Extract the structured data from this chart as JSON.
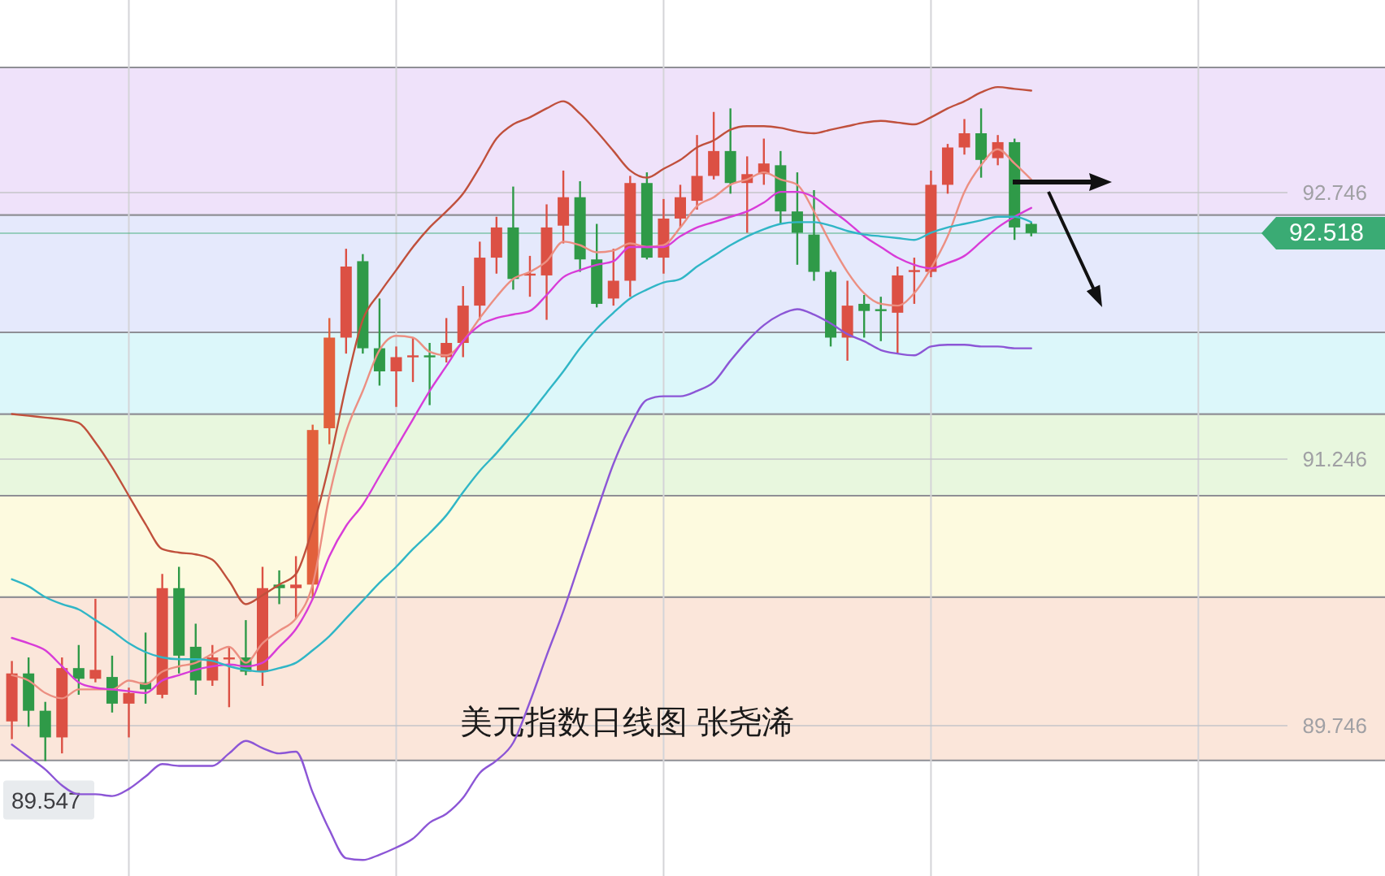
{
  "chart_data": {
    "type": "candlestick",
    "title": "美元指数日线图 张尧浠",
    "categories": [
      null,
      null,
      null,
      null,
      null,
      null,
      null,
      null,
      null,
      null,
      null,
      null,
      null,
      null,
      null,
      null,
      null,
      null,
      null,
      null,
      null,
      null,
      null,
      null,
      null,
      null,
      null,
      null,
      null,
      null,
      null,
      null,
      null,
      null,
      null,
      null,
      null,
      null,
      null,
      null,
      null,
      null,
      null,
      null,
      null,
      null,
      null,
      null,
      null,
      null,
      null,
      null,
      null,
      null,
      null,
      null,
      null,
      null,
      null,
      null,
      null,
      null
    ],
    "ohlc": [
      [
        89.77,
        90.11,
        89.67,
        90.04
      ],
      [
        90.04,
        90.13,
        89.74,
        89.83
      ],
      [
        89.83,
        89.88,
        89.547,
        89.68
      ],
      [
        89.68,
        90.13,
        89.59,
        90.07
      ],
      [
        90.07,
        90.2,
        89.92,
        90.01
      ],
      [
        90.01,
        90.46,
        89.99,
        90.06
      ],
      [
        90.02,
        90.14,
        89.82,
        89.87
      ],
      [
        89.87,
        89.96,
        89.68,
        89.93
      ],
      [
        89.99,
        90.27,
        89.87,
        89.95
      ],
      [
        89.92,
        90.6,
        89.9,
        90.52
      ],
      [
        90.52,
        90.64,
        90.04,
        90.14
      ],
      [
        90.19,
        90.32,
        89.92,
        90.0
      ],
      [
        90.0,
        90.2,
        89.97,
        90.13
      ],
      [
        90.12,
        90.19,
        89.85,
        90.13
      ],
      [
        90.13,
        90.34,
        90.03,
        90.05
      ],
      [
        90.05,
        90.64,
        89.97,
        90.52
      ],
      [
        90.54,
        90.62,
        90.43,
        90.52
      ],
      [
        90.52,
        90.7,
        90.35,
        90.54
      ],
      [
        90.54,
        91.44,
        90.46,
        91.41
      ],
      [
        91.42,
        92.04,
        91.33,
        91.93
      ],
      [
        91.93,
        92.43,
        91.84,
        92.33
      ],
      [
        92.36,
        92.4,
        91.84,
        91.87
      ],
      [
        91.87,
        92.15,
        91.66,
        91.74
      ],
      [
        91.74,
        91.88,
        91.54,
        91.82
      ],
      [
        91.82,
        91.93,
        91.68,
        91.83
      ],
      [
        91.83,
        91.9,
        91.55,
        91.82
      ],
      [
        91.82,
        92.04,
        91.79,
        91.9
      ],
      [
        91.9,
        92.22,
        91.82,
        92.11
      ],
      [
        92.11,
        92.47,
        92.03,
        92.38
      ],
      [
        92.38,
        92.61,
        92.29,
        92.55
      ],
      [
        92.55,
        92.78,
        92.2,
        92.26
      ],
      [
        92.28,
        92.39,
        92.16,
        92.29
      ],
      [
        92.28,
        92.68,
        92.03,
        92.55
      ],
      [
        92.56,
        92.87,
        92.46,
        92.72
      ],
      [
        92.72,
        92.81,
        92.3,
        92.37
      ],
      [
        92.37,
        92.57,
        92.1,
        92.12
      ],
      [
        92.15,
        92.43,
        92.11,
        92.25
      ],
      [
        92.25,
        92.84,
        92.16,
        92.8
      ],
      [
        92.8,
        92.86,
        92.37,
        92.38
      ],
      [
        92.38,
        92.71,
        92.29,
        92.6
      ],
      [
        92.6,
        92.79,
        92.55,
        92.72
      ],
      [
        92.7,
        93.07,
        92.65,
        92.84
      ],
      [
        92.84,
        93.2,
        92.82,
        92.98
      ],
      [
        92.98,
        93.22,
        92.74,
        92.8
      ],
      [
        92.8,
        92.95,
        92.52,
        92.85
      ],
      [
        92.85,
        93.05,
        92.79,
        92.91
      ],
      [
        92.9,
        92.98,
        92.57,
        92.64
      ],
      [
        92.64,
        92.86,
        92.34,
        92.52
      ],
      [
        92.51,
        92.76,
        92.25,
        92.3
      ],
      [
        92.3,
        92.31,
        91.88,
        91.93
      ],
      [
        91.93,
        92.25,
        91.8,
        92.11
      ],
      [
        92.12,
        92.17,
        91.93,
        92.08
      ],
      [
        92.09,
        92.16,
        91.91,
        92.08
      ],
      [
        92.07,
        92.33,
        91.84,
        92.28
      ],
      [
        92.3,
        92.38,
        92.12,
        92.31
      ],
      [
        92.3,
        92.87,
        92.27,
        92.79
      ],
      [
        92.79,
        93.02,
        92.74,
        93.0
      ],
      [
        93.0,
        93.16,
        92.96,
        93.08
      ],
      [
        93.08,
        93.22,
        92.83,
        92.93
      ],
      [
        92.94,
        93.07,
        92.9,
        93.03
      ],
      [
        93.03,
        93.05,
        92.48,
        92.55
      ],
      [
        92.57,
        92.58,
        92.5,
        92.518
      ]
    ],
    "colors": [
      "#dc5044",
      "#2f9a48",
      "#2f9a48",
      "#dc5044",
      "#2f9a48",
      "#dc5044",
      "#2f9a48",
      "#dc5044",
      "#2f9a48",
      "#dc5044",
      "#2f9a48",
      "#2f9a48",
      "#dc5044",
      "#dc5044",
      "#2f9a48",
      "#dc5044",
      "#2f9a48",
      "#dc5044",
      "#e2603c",
      "#e2603c",
      "#dc5044",
      "#2f9a48",
      "#2f9a48",
      "#dc5044",
      "#dc5044",
      "#2f9a48",
      "#dc5044",
      "#dc5044",
      "#dc5044",
      "#dc5044",
      "#2f9a48",
      "#dc5044",
      "#dc5044",
      "#dc5044",
      "#2f9a48",
      "#2f9a48",
      "#dc5044",
      "#dc5044",
      "#2f9a48",
      "#dc5044",
      "#dc5044",
      "#dc5044",
      "#dc5044",
      "#2f9a48",
      "#dc5044",
      "#dc5044",
      "#2f9a48",
      "#2f9a48",
      "#2f9a48",
      "#2f9a48",
      "#dc5044",
      "#2f9a48",
      "#2f9a48",
      "#dc5044",
      "#dc5044",
      "#dc5044",
      "#dc5044",
      "#dc5044",
      "#2f9a48",
      "#dc5044",
      "#2f9a48",
      "#2f9a48"
    ],
    "series": [
      {
        "type": "line",
        "color": "#c0503c",
        "values": [
          91.5,
          91.49,
          91.48,
          91.47,
          91.45,
          91.34,
          91.2,
          91.04,
          90.88,
          90.74,
          90.72,
          90.71,
          90.68,
          90.56,
          90.43,
          90.48,
          90.54,
          90.6,
          90.86,
          91.22,
          91.66,
          92.03,
          92.18,
          92.31,
          92.44,
          92.55,
          92.64,
          92.74,
          92.89,
          93.05,
          93.13,
          93.17,
          93.22,
          93.26,
          93.19,
          93.09,
          92.98,
          92.87,
          92.83,
          92.88,
          92.93,
          93.0,
          93.04,
          93.1,
          93.12,
          93.12,
          93.11,
          93.09,
          93.08,
          93.1,
          93.12,
          93.14,
          93.15,
          93.14,
          93.13,
          93.17,
          93.22,
          93.26,
          93.31,
          93.34,
          93.33,
          93.32
        ]
      },
      {
        "type": "line",
        "color": "#8c56d6",
        "values": [
          89.64,
          89.57,
          89.5,
          89.41,
          89.36,
          89.36,
          89.35,
          89.39,
          89.46,
          89.53,
          89.52,
          89.52,
          89.52,
          89.59,
          89.66,
          89.62,
          89.59,
          89.6,
          89.37,
          89.16,
          89.0,
          88.99,
          89.02,
          89.06,
          89.11,
          89.2,
          89.25,
          89.34,
          89.48,
          89.55,
          89.65,
          89.88,
          90.14,
          90.39,
          90.67,
          90.95,
          91.22,
          91.43,
          91.58,
          91.6,
          91.6,
          91.63,
          91.68,
          91.8,
          91.91,
          92.0,
          92.06,
          92.09,
          92.06,
          92.01,
          91.95,
          91.91,
          91.86,
          91.84,
          91.83,
          91.88,
          91.89,
          91.89,
          91.88,
          91.88,
          91.87,
          91.87
        ]
      },
      {
        "type": "line",
        "color": "#ec8f82",
        "values": [
          90.03,
          90.0,
          89.93,
          89.9,
          89.95,
          89.95,
          89.95,
          90.0,
          89.98,
          90.05,
          90.08,
          90.1,
          90.15,
          90.19,
          90.1,
          90.21,
          90.28,
          90.35,
          90.54,
          91.04,
          91.4,
          91.63,
          91.86,
          91.94,
          91.93,
          91.85,
          91.83,
          91.91,
          92.04,
          92.16,
          92.26,
          92.3,
          92.36,
          92.47,
          92.45,
          92.41,
          92.42,
          92.46,
          92.44,
          92.45,
          92.55,
          92.67,
          92.72,
          92.79,
          92.82,
          92.86,
          92.82,
          92.79,
          92.64,
          92.46,
          92.3,
          92.18,
          92.12,
          92.11,
          92.18,
          92.32,
          92.5,
          92.75,
          92.9,
          92.99,
          92.91,
          92.82
        ]
      },
      {
        "type": "line",
        "color": "#d83cd8",
        "values": [
          90.24,
          90.21,
          90.17,
          90.08,
          89.99,
          89.96,
          89.95,
          89.94,
          89.93,
          90.0,
          90.03,
          90.06,
          90.08,
          90.09,
          90.08,
          90.1,
          90.19,
          90.29,
          90.46,
          90.7,
          90.87,
          90.99,
          91.15,
          91.31,
          91.47,
          91.63,
          91.77,
          91.91,
          92.0,
          92.04,
          92.06,
          92.08,
          92.17,
          92.27,
          92.31,
          92.34,
          92.36,
          92.44,
          92.44,
          92.44,
          92.5,
          92.55,
          92.58,
          92.61,
          92.64,
          92.69,
          92.75,
          92.75,
          92.72,
          92.65,
          92.58,
          92.5,
          92.44,
          92.38,
          92.34,
          92.32,
          92.35,
          92.39,
          92.47,
          92.55,
          92.61,
          92.66
        ]
      },
      {
        "type": "line",
        "color": "#30b6c6",
        "values": [
          90.57,
          90.53,
          90.47,
          90.43,
          90.4,
          90.34,
          90.28,
          90.21,
          90.16,
          90.13,
          90.12,
          90.12,
          90.11,
          90.08,
          90.06,
          90.05,
          90.07,
          90.1,
          90.17,
          90.25,
          90.35,
          90.45,
          90.55,
          90.64,
          90.74,
          90.83,
          90.93,
          91.06,
          91.18,
          91.28,
          91.39,
          91.5,
          91.62,
          91.74,
          91.87,
          91.98,
          92.07,
          92.15,
          92.2,
          92.24,
          92.26,
          92.33,
          92.39,
          92.45,
          92.5,
          92.54,
          92.57,
          92.58,
          92.58,
          92.56,
          92.53,
          92.51,
          92.5,
          92.49,
          92.48,
          92.52,
          92.55,
          92.57,
          92.59,
          92.61,
          92.61,
          92.58
        ]
      }
    ],
    "ylim": [
      88.9,
      93.83
    ],
    "yticks": [
      92.746,
      91.246,
      89.746
    ],
    "grid": true,
    "bands": [
      {
        "axis": "y",
        "from": 89.55,
        "to": 90.47,
        "color": "#fbe6da"
      },
      {
        "axis": "y",
        "from": 90.47,
        "to": 91.04,
        "color": "#fdfadf"
      },
      {
        "axis": "y",
        "from": 91.04,
        "to": 91.5,
        "color": "#e8f7de"
      },
      {
        "axis": "y",
        "from": 91.5,
        "to": 91.96,
        "color": "#dcf7fa"
      },
      {
        "axis": "y",
        "from": 91.96,
        "to": 92.62,
        "color": "#e5e9fc"
      },
      {
        "axis": "y",
        "from": 92.62,
        "to": 93.45,
        "color": "#efe2fa"
      }
    ],
    "ref_lines": [
      {
        "axis": "y",
        "value": 92.518,
        "label": "92.518",
        "color": "#3aab74"
      }
    ],
    "annotations": [
      {
        "text": "89.547",
        "y": 89.547
      }
    ]
  }
}
